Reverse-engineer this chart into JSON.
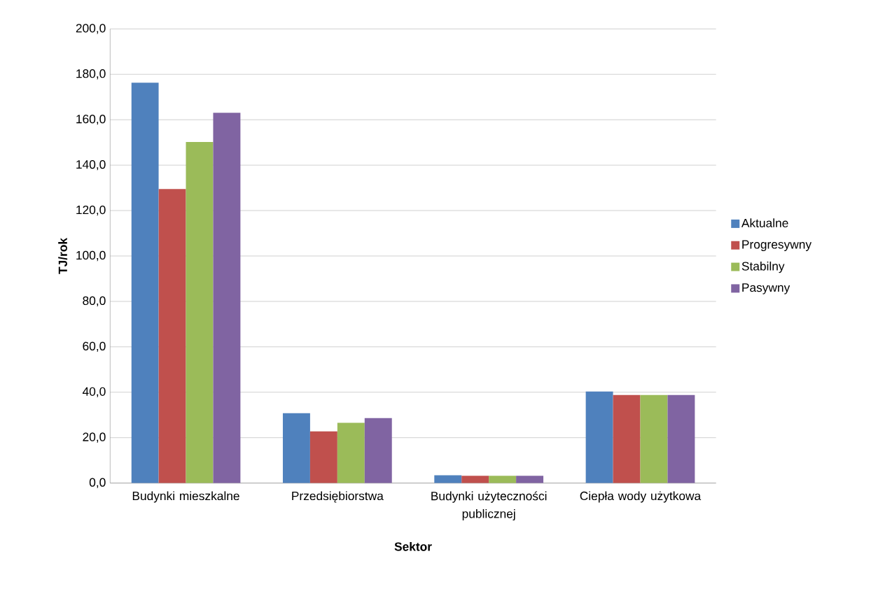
{
  "chart_data": {
    "type": "bar",
    "xlabel": "Sektor",
    "ylabel": "TJ/rok",
    "categories": [
      "Budynki mieszkalne",
      "Przedsiębiorstwa",
      "Budynki użyteczności publicznej",
      "Ciepła wody użytkowa"
    ],
    "series": [
      {
        "name": "Aktualne",
        "color": "#4f81bd",
        "values": [
          176.3,
          30.8,
          3.4,
          40.3
        ]
      },
      {
        "name": "Progresywny",
        "color": "#c0504d",
        "values": [
          129.5,
          22.8,
          3.2,
          38.8
        ]
      },
      {
        "name": "Stabilny",
        "color": "#9bbb59",
        "values": [
          150.2,
          26.5,
          3.2,
          38.8
        ]
      },
      {
        "name": "Pasywny",
        "color": "#8064a2",
        "values": [
          163.1,
          28.6,
          3.2,
          38.8
        ]
      }
    ],
    "ylim": [
      0,
      200
    ],
    "yticks": [
      {
        "value": 0,
        "label": "0,0"
      },
      {
        "value": 20,
        "label": "20,0"
      },
      {
        "value": 40,
        "label": "40,0"
      },
      {
        "value": 60,
        "label": "60,0"
      },
      {
        "value": 80,
        "label": "80,0"
      },
      {
        "value": 100,
        "label": "100,0"
      },
      {
        "value": 120,
        "label": "120,0"
      },
      {
        "value": 140,
        "label": "140,0"
      },
      {
        "value": 160,
        "label": "160,0"
      },
      {
        "value": 180,
        "label": "180,0"
      },
      {
        "value": 200,
        "label": "200,0"
      }
    ],
    "grid": "y",
    "legend": "right"
  }
}
